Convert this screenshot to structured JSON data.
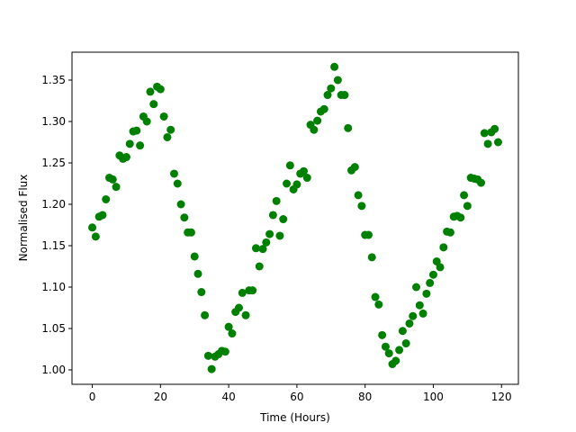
{
  "chart_data": {
    "type": "scatter",
    "xlabel": "Time (Hours)",
    "ylabel": "Normalised Flux",
    "x": [
      0,
      1,
      2,
      3,
      4,
      5,
      6,
      7,
      8,
      9,
      10,
      11,
      12,
      13,
      14,
      15,
      16,
      17,
      18,
      19,
      20,
      21,
      22,
      23,
      24,
      25,
      26,
      27,
      28,
      29,
      30,
      31,
      32,
      33,
      34,
      35,
      36,
      37,
      38,
      39,
      40,
      41,
      42,
      43,
      44,
      45,
      46,
      47,
      48,
      49,
      50,
      51,
      52,
      53,
      54,
      55,
      56,
      57,
      58,
      59,
      60,
      61,
      62,
      63,
      64,
      65,
      66,
      67,
      68,
      69,
      70,
      71,
      72,
      73,
      74,
      75,
      76,
      77,
      78,
      79,
      80,
      81,
      82,
      83,
      84,
      85,
      86,
      87,
      88,
      89,
      90,
      91,
      92,
      93,
      94,
      95,
      96,
      97,
      98,
      99,
      100,
      101,
      102,
      103,
      104,
      105,
      106,
      107,
      108,
      109,
      110,
      111,
      112,
      113,
      114,
      115,
      116,
      117,
      118,
      119
    ],
    "values": [
      1.172,
      1.161,
      1.185,
      1.187,
      1.206,
      1.232,
      1.23,
      1.221,
      1.259,
      1.255,
      1.257,
      1.273,
      1.288,
      1.289,
      1.271,
      1.306,
      1.3,
      1.336,
      1.321,
      1.342,
      1.339,
      1.306,
      1.281,
      1.29,
      1.237,
      1.225,
      1.2,
      1.184,
      1.166,
      1.166,
      1.137,
      1.116,
      1.094,
      1.066,
      1.017,
      1.001,
      1.016,
      1.019,
      1.023,
      1.022,
      1.052,
      1.044,
      1.07,
      1.075,
      1.093,
      1.066,
      1.096,
      1.096,
      1.147,
      1.125,
      1.146,
      1.154,
      1.164,
      1.187,
      1.204,
      1.162,
      1.182,
      1.225,
      1.247,
      1.218,
      1.224,
      1.237,
      1.24,
      1.232,
      1.296,
      1.29,
      1.301,
      1.312,
      1.315,
      1.332,
      1.34,
      1.366,
      1.35,
      1.332,
      1.332,
      1.292,
      1.241,
      1.245,
      1.211,
      1.198,
      1.163,
      1.163,
      1.136,
      1.088,
      1.079,
      1.042,
      1.028,
      1.02,
      1.007,
      1.011,
      1.024,
      1.047,
      1.032,
      1.056,
      1.065,
      1.1,
      1.078,
      1.068,
      1.092,
      1.105,
      1.115,
      1.131,
      1.124,
      1.148,
      1.167,
      1.166,
      1.185,
      1.186,
      1.184,
      1.211,
      1.198,
      1.232,
      1.231,
      1.23,
      1.226,
      1.286,
      1.273,
      1.287,
      1.291,
      1.275
    ],
    "color": "#008000",
    "xlim": [
      -5.95,
      124.95
    ],
    "xticks": [
      0,
      20,
      40,
      60,
      80,
      100,
      120
    ],
    "ylim": [
      0.9826,
      1.3837
    ],
    "yticks": [
      {
        "value": 1,
        "label": "1.00"
      },
      1.05,
      {
        "value": 1.1,
        "label": "1.10"
      },
      1.15,
      {
        "value": 1.2,
        "label": "1.20"
      },
      1.25,
      {
        "value": 1.3,
        "label": "1.30"
      },
      1.35
    ]
  }
}
